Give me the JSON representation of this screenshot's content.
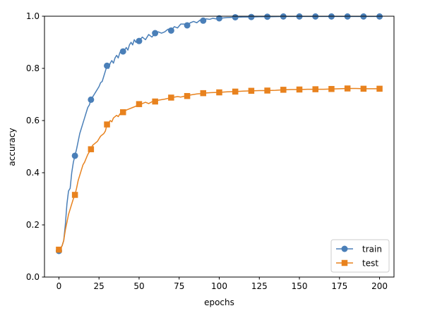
{
  "chart_data": {
    "type": "line",
    "title": "",
    "xlabel": "epochs",
    "ylabel": "accuracy",
    "xlim": [
      -9,
      209
    ],
    "ylim": [
      0.0,
      1.0
    ],
    "xticks": [
      0,
      25,
      50,
      75,
      100,
      125,
      150,
      175,
      200
    ],
    "yticks": [
      0.0,
      0.2,
      0.4,
      0.6,
      0.8,
      1.0
    ],
    "xtick_labels": [
      "0",
      "25",
      "50",
      "75",
      "100",
      "125",
      "150",
      "175",
      "200"
    ],
    "ytick_labels": [
      "0.0",
      "0.2",
      "0.4",
      "0.6",
      "0.8",
      "1.0"
    ],
    "grid": false,
    "legend": "bottom-right",
    "marker_every": 10,
    "series": [
      {
        "name": "train",
        "color": "#4a7fb8",
        "marker": "circle",
        "line": [
          [
            0,
            0.1
          ],
          [
            1,
            0.11
          ],
          [
            2,
            0.12
          ],
          [
            3,
            0.14
          ],
          [
            4,
            0.2
          ],
          [
            5,
            0.28
          ],
          [
            6,
            0.33
          ],
          [
            7,
            0.34
          ],
          [
            8,
            0.4
          ],
          [
            9,
            0.44
          ],
          [
            10,
            0.465
          ],
          [
            11,
            0.49
          ],
          [
            12,
            0.52
          ],
          [
            13,
            0.55
          ],
          [
            14,
            0.57
          ],
          [
            15,
            0.59
          ],
          [
            16,
            0.61
          ],
          [
            17,
            0.63
          ],
          [
            18,
            0.65
          ],
          [
            19,
            0.66
          ],
          [
            20,
            0.68
          ],
          [
            21,
            0.69
          ],
          [
            22,
            0.7
          ],
          [
            23,
            0.71
          ],
          [
            24,
            0.72
          ],
          [
            25,
            0.73
          ],
          [
            26,
            0.745
          ],
          [
            27,
            0.75
          ],
          [
            28,
            0.77
          ],
          [
            29,
            0.79
          ],
          [
            30,
            0.81
          ],
          [
            31,
            0.8
          ],
          [
            32,
            0.82
          ],
          [
            33,
            0.83
          ],
          [
            34,
            0.82
          ],
          [
            35,
            0.84
          ],
          [
            36,
            0.85
          ],
          [
            37,
            0.84
          ],
          [
            38,
            0.86
          ],
          [
            39,
            0.87
          ],
          [
            40,
            0.865
          ],
          [
            41,
            0.87
          ],
          [
            42,
            0.88
          ],
          [
            43,
            0.87
          ],
          [
            44,
            0.89
          ],
          [
            45,
            0.9
          ],
          [
            46,
            0.89
          ],
          [
            47,
            0.91
          ],
          [
            48,
            0.9
          ],
          [
            49,
            0.91
          ],
          [
            50,
            0.905
          ],
          [
            52,
            0.92
          ],
          [
            54,
            0.91
          ],
          [
            56,
            0.93
          ],
          [
            58,
            0.92
          ],
          [
            60,
            0.935
          ],
          [
            62,
            0.94
          ],
          [
            64,
            0.935
          ],
          [
            66,
            0.94
          ],
          [
            68,
            0.95
          ],
          [
            70,
            0.945
          ],
          [
            72,
            0.96
          ],
          [
            74,
            0.955
          ],
          [
            76,
            0.97
          ],
          [
            78,
            0.97
          ],
          [
            80,
            0.965
          ],
          [
            82,
            0.975
          ],
          [
            84,
            0.98
          ],
          [
            86,
            0.975
          ],
          [
            88,
            0.985
          ],
          [
            90,
            0.983
          ],
          [
            92,
            0.99
          ],
          [
            94,
            0.988
          ],
          [
            96,
            0.992
          ],
          [
            98,
            0.99
          ],
          [
            100,
            0.992
          ],
          [
            105,
            0.995
          ],
          [
            110,
            0.996
          ],
          [
            115,
            0.997
          ],
          [
            120,
            0.997
          ],
          [
            125,
            0.998
          ],
          [
            130,
            0.998
          ],
          [
            140,
            0.999
          ],
          [
            150,
            0.999
          ],
          [
            160,
            0.999
          ],
          [
            170,
            0.999
          ],
          [
            180,
            0.999
          ],
          [
            190,
            0.999
          ],
          [
            200,
            0.999
          ]
        ],
        "markers": [
          [
            0,
            0.1
          ],
          [
            10,
            0.465
          ],
          [
            20,
            0.68
          ],
          [
            30,
            0.81
          ],
          [
            40,
            0.865
          ],
          [
            50,
            0.905
          ],
          [
            60,
            0.935
          ],
          [
            70,
            0.945
          ],
          [
            80,
            0.965
          ],
          [
            90,
            0.983
          ],
          [
            100,
            0.992
          ],
          [
            110,
            0.996
          ],
          [
            120,
            0.997
          ],
          [
            130,
            0.998
          ],
          [
            140,
            0.999
          ],
          [
            150,
            0.999
          ],
          [
            160,
            0.999
          ],
          [
            170,
            0.999
          ],
          [
            180,
            0.999
          ],
          [
            190,
            0.999
          ],
          [
            200,
            0.999
          ]
        ]
      },
      {
        "name": "test",
        "color": "#e8821e",
        "marker": "square",
        "line": [
          [
            0,
            0.105
          ],
          [
            1,
            0.11
          ],
          [
            2,
            0.12
          ],
          [
            3,
            0.14
          ],
          [
            4,
            0.18
          ],
          [
            5,
            0.21
          ],
          [
            6,
            0.24
          ],
          [
            7,
            0.26
          ],
          [
            8,
            0.28
          ],
          [
            9,
            0.3
          ],
          [
            10,
            0.315
          ],
          [
            11,
            0.34
          ],
          [
            12,
            0.37
          ],
          [
            13,
            0.39
          ],
          [
            14,
            0.41
          ],
          [
            15,
            0.43
          ],
          [
            16,
            0.44
          ],
          [
            17,
            0.455
          ],
          [
            18,
            0.47
          ],
          [
            19,
            0.48
          ],
          [
            20,
            0.49
          ],
          [
            21,
            0.505
          ],
          [
            22,
            0.51
          ],
          [
            23,
            0.515
          ],
          [
            24,
            0.52
          ],
          [
            25,
            0.53
          ],
          [
            26,
            0.54
          ],
          [
            27,
            0.545
          ],
          [
            28,
            0.55
          ],
          [
            29,
            0.56
          ],
          [
            30,
            0.585
          ],
          [
            31,
            0.59
          ],
          [
            32,
            0.6
          ],
          [
            33,
            0.595
          ],
          [
            34,
            0.61
          ],
          [
            35,
            0.615
          ],
          [
            36,
            0.62
          ],
          [
            37,
            0.615
          ],
          [
            38,
            0.625
          ],
          [
            39,
            0.63
          ],
          [
            40,
            0.632
          ],
          [
            42,
            0.64
          ],
          [
            44,
            0.645
          ],
          [
            46,
            0.65
          ],
          [
            48,
            0.655
          ],
          [
            50,
            0.663
          ],
          [
            52,
            0.665
          ],
          [
            54,
            0.67
          ],
          [
            56,
            0.665
          ],
          [
            58,
            0.672
          ],
          [
            60,
            0.673
          ],
          [
            62,
            0.678
          ],
          [
            64,
            0.68
          ],
          [
            66,
            0.682
          ],
          [
            68,
            0.685
          ],
          [
            70,
            0.688
          ],
          [
            72,
            0.69
          ],
          [
            74,
            0.692
          ],
          [
            76,
            0.69
          ],
          [
            78,
            0.693
          ],
          [
            80,
            0.694
          ],
          [
            82,
            0.698
          ],
          [
            84,
            0.7
          ],
          [
            86,
            0.702
          ],
          [
            88,
            0.703
          ],
          [
            90,
            0.705
          ],
          [
            95,
            0.707
          ],
          [
            100,
            0.708
          ],
          [
            105,
            0.71
          ],
          [
            110,
            0.711
          ],
          [
            115,
            0.713
          ],
          [
            120,
            0.714
          ],
          [
            125,
            0.715
          ],
          [
            130,
            0.715
          ],
          [
            135,
            0.716
          ],
          [
            140,
            0.718
          ],
          [
            145,
            0.719
          ],
          [
            150,
            0.719
          ],
          [
            155,
            0.72
          ],
          [
            160,
            0.72
          ],
          [
            165,
            0.72
          ],
          [
            170,
            0.721
          ],
          [
            175,
            0.722
          ],
          [
            180,
            0.723
          ],
          [
            185,
            0.723
          ],
          [
            190,
            0.722
          ],
          [
            195,
            0.722
          ],
          [
            200,
            0.722
          ]
        ],
        "markers": [
          [
            0,
            0.105
          ],
          [
            10,
            0.315
          ],
          [
            20,
            0.49
          ],
          [
            30,
            0.585
          ],
          [
            40,
            0.632
          ],
          [
            50,
            0.663
          ],
          [
            60,
            0.673
          ],
          [
            70,
            0.688
          ],
          [
            80,
            0.694
          ],
          [
            90,
            0.705
          ],
          [
            100,
            0.708
          ],
          [
            110,
            0.711
          ],
          [
            120,
            0.714
          ],
          [
            130,
            0.715
          ],
          [
            140,
            0.718
          ],
          [
            150,
            0.719
          ],
          [
            160,
            0.72
          ],
          [
            170,
            0.721
          ],
          [
            180,
            0.723
          ],
          [
            190,
            0.722
          ],
          [
            200,
            0.722
          ]
        ]
      }
    ]
  }
}
